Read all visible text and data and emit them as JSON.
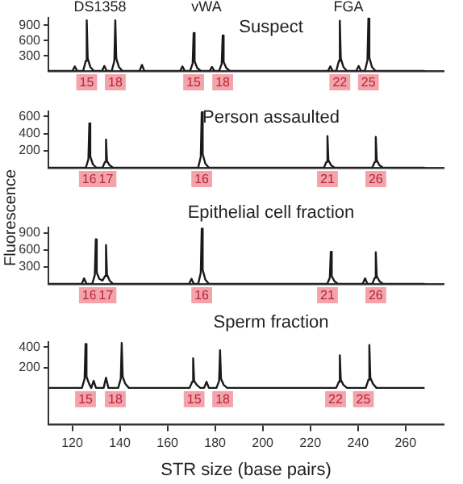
{
  "chart_data": [
    {
      "type": "line",
      "title": "Suspect",
      "xlim": [
        110,
        276
      ],
      "ylim": [
        0,
        1050
      ],
      "yticks": [
        300,
        600,
        900
      ],
      "tick_labels": "y",
      "series": [
        {
          "color": "#1a1a1a",
          "x": [
            110,
            120.1,
            121.1,
            122.1,
            124.6,
            125.7,
            126.1,
            126.5,
            127.6,
            129.1,
            132.5,
            133.5,
            134.5,
            136.6,
            137.7,
            138.1,
            138.5,
            139.6,
            141.1,
            148.3,
            149.3,
            150.3,
            165.3,
            166.3,
            167.3,
            169.5,
            170.6,
            171.0,
            171.4,
            172.5,
            174.0,
            177.7,
            178.7,
            179.7,
            181.7,
            182.8,
            183.2,
            183.6,
            184.7,
            186.2,
            227.4,
            228.4,
            229.4,
            230.9,
            232.0,
            232.4,
            232.8,
            233.9,
            235.4,
            239.3,
            240.3,
            241.3,
            242.9,
            244.0,
            244.4,
            244.8,
            245.9,
            247.4,
            268
          ],
          "values": [
            0,
            0,
            90,
            0,
            0,
            200,
            1000,
            250,
            80,
            0,
            0,
            100,
            0,
            0,
            200,
            1000,
            250,
            80,
            0,
            0,
            120,
            0,
            0,
            90,
            0,
            0,
            150,
            750,
            190,
            60,
            0,
            0,
            80,
            0,
            0,
            140,
            700,
            180,
            60,
            0,
            0,
            90,
            0,
            0,
            200,
            990,
            250,
            80,
            0,
            0,
            100,
            0,
            0,
            210,
            1040,
            260,
            80,
            0,
            0
          ]
        }
      ],
      "annotations": [
        "DS1358",
        "vWA",
        "FGA",
        {
          "text": "15",
          "x": 126.1,
          "y": 0
        },
        {
          "text": "18",
          "x": 138.1,
          "y": 0
        },
        {
          "text": "15",
          "x": 171.0,
          "y": 0
        },
        {
          "text": "18",
          "x": 183.2,
          "y": 0
        },
        {
          "text": "22",
          "x": 232.4,
          "y": 0
        },
        {
          "text": "25",
          "x": 244.4,
          "y": 0
        }
      ]
    },
    {
      "type": "line",
      "title": "Person assaulted",
      "xlim": [
        110,
        276
      ],
      "ylim": [
        0,
        660
      ],
      "yticks": [
        200,
        400,
        600
      ],
      "tick_labels": "y",
      "series": [
        {
          "color": "#1a1a1a",
          "x": [
            110,
            125.7,
            126.8,
            127.2,
            127.6,
            128.7,
            130.2,
            132.7,
            133.8,
            134.2,
            134.6,
            135.7,
            137.2,
            172.9,
            174.0,
            174.4,
            174.8,
            175.9,
            177.4,
            225.7,
            226.8,
            227.2,
            227.6,
            228.7,
            230.2,
            246.0,
            247.1,
            247.5,
            247.9,
            249.0,
            250.5,
            268
          ],
          "values": [
            0,
            0,
            100,
            520,
            130,
            40,
            0,
            0,
            70,
            330,
            80,
            30,
            0,
            0,
            130,
            650,
            160,
            50,
            0,
            0,
            70,
            370,
            90,
            30,
            0,
            0,
            70,
            360,
            90,
            30,
            0,
            0
          ]
        }
      ],
      "annotations": [
        {
          "text": "16",
          "x": 127.2,
          "y": 0
        },
        {
          "text": "17",
          "x": 134.2,
          "y": 0
        },
        {
          "text": "16",
          "x": 174.4,
          "y": 0
        },
        {
          "text": "21",
          "x": 227.2,
          "y": 0
        },
        {
          "text": "26",
          "x": 247.5,
          "y": 0
        }
      ]
    },
    {
      "type": "line",
      "title": "Epithelial cell fraction",
      "ylabel": "Fluorescence",
      "xlim": [
        110,
        276
      ],
      "ylim": [
        0,
        1000
      ],
      "yticks": [
        300,
        600,
        900
      ],
      "tick_labels": "y",
      "series": [
        {
          "color": "#1a1a1a",
          "x": [
            110,
            124.0,
            125.0,
            126.0,
            128.4,
            129.5,
            129.9,
            130.3,
            131.4,
            132.7,
            133.8,
            134.2,
            134.6,
            135.7,
            137.2,
            169.1,
            170.1,
            171.1,
            172.9,
            174.0,
            174.4,
            174.8,
            175.9,
            177.4,
            227.1,
            228.2,
            228.6,
            229.0,
            230.1,
            231.6,
            242.0,
            243.0,
            244.0,
            246.0,
            247.1,
            247.5,
            247.9,
            249.0,
            250.5,
            268
          ],
          "values": [
            0,
            0,
            100,
            0,
            0,
            160,
            790,
            200,
            90,
            60,
            140,
            690,
            170,
            60,
            0,
            0,
            90,
            0,
            0,
            200,
            980,
            250,
            80,
            0,
            0,
            110,
            570,
            140,
            50,
            0,
            0,
            100,
            0,
            0,
            110,
            560,
            140,
            50,
            0,
            0
          ]
        }
      ],
      "annotations": [
        {
          "text": "16",
          "x": 127.2,
          "y": 0
        },
        {
          "text": "17",
          "x": 134.2,
          "y": 0
        },
        {
          "text": "16",
          "x": 174.4,
          "y": 0
        },
        {
          "text": "21",
          "x": 227.2,
          "y": 0
        },
        {
          "text": "26",
          "x": 247.5,
          "y": 0
        }
      ]
    },
    {
      "type": "line",
      "title": "Sperm fraction",
      "xlabel": "STR size (base pairs)",
      "xlim": [
        110,
        276
      ],
      "xticks": [
        120,
        140,
        160,
        180,
        200,
        220,
        240,
        260
      ],
      "ylim": [
        -360,
        450
      ],
      "yticks": [
        200,
        400
      ],
      "series": [
        {
          "color": "#1a1a1a",
          "x": [
            110,
            124.1,
            125.2,
            125.6,
            126.0,
            127.1,
            128.0,
            129.0,
            130.0,
            133.2,
            134.2,
            135.2,
            139.3,
            140.4,
            140.8,
            141.2,
            142.3,
            143.8,
            169.3,
            170.4,
            170.8,
            171.2,
            172.3,
            173.8,
            175.4,
            176.4,
            177.4,
            180.6,
            181.7,
            182.1,
            182.5,
            183.6,
            185.1,
            230.9,
            232.0,
            232.4,
            232.8,
            233.9,
            235.4,
            243.3,
            244.4,
            244.8,
            245.2,
            246.3,
            247.8,
            268
          ],
          "values": [
            0,
            0,
            90,
            430,
            110,
            40,
            0,
            70,
            0,
            0,
            100,
            0,
            0,
            90,
            440,
            110,
            40,
            0,
            0,
            60,
            290,
            70,
            30,
            0,
            0,
            60,
            0,
            0,
            70,
            370,
            90,
            30,
            0,
            0,
            60,
            320,
            80,
            30,
            0,
            0,
            80,
            420,
            100,
            40,
            0,
            0
          ]
        }
      ],
      "annotations": [
        {
          "text": "15",
          "x": 125.6,
          "y": 0
        },
        {
          "text": "18",
          "x": 138.1,
          "y": 0
        },
        {
          "text": "15",
          "x": 171.2,
          "y": 0
        },
        {
          "text": "18",
          "x": 183.2,
          "y": 0
        },
        {
          "text": "22",
          "x": 230.6,
          "y": 0
        },
        {
          "text": "25",
          "x": 242.3,
          "y": 0
        }
      ]
    }
  ]
}
